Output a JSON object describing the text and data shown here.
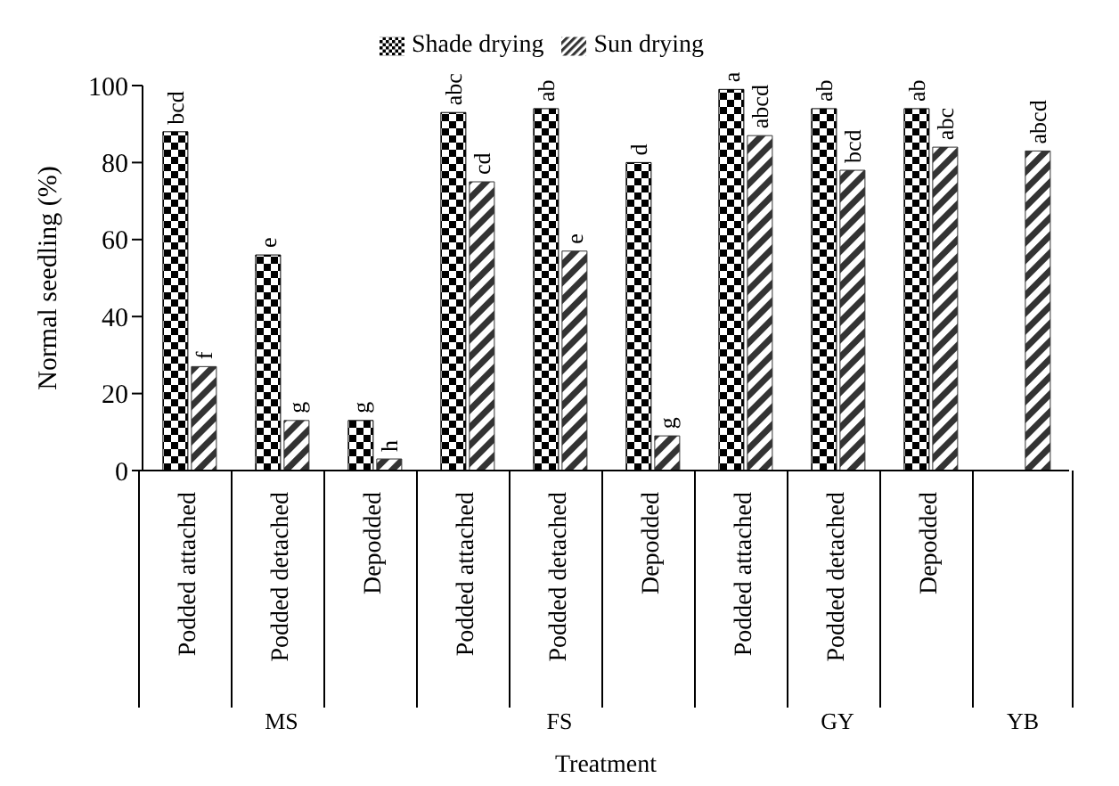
{
  "chart_data": {
    "type": "bar",
    "xlabel": "Treatment",
    "ylabel": "Normal seedling (%)",
    "categories": [
      "Podded attached",
      "Podded detached",
      "Depodded",
      "Podded attached",
      "Podded detached",
      "Depodded",
      "Podded attached",
      "Podded detached",
      "Depodded",
      null
    ],
    "series": [
      {
        "name": "Shade drying",
        "color": "#000000",
        "values": [
          88,
          56,
          13,
          93,
          94,
          80,
          99,
          94,
          94,
          null
        ],
        "value_labels": [
          "bcd",
          "e",
          "g",
          "abc",
          "ab",
          "d",
          "a",
          "ab",
          "ab",
          null
        ]
      },
      {
        "name": "Sun drying",
        "color": "#333333",
        "values": [
          27,
          13,
          3,
          75,
          57,
          9,
          87,
          78,
          84,
          83
        ],
        "value_labels": [
          "f",
          "g",
          "h",
          "cd",
          "e",
          "g",
          "abcd",
          "bcd",
          "abc",
          "abcd"
        ]
      }
    ],
    "annotations": [
      "MS",
      "FS",
      "GY",
      "YB"
    ],
    "ylim": [
      0,
      100
    ],
    "yticks": [
      0,
      20,
      40,
      60,
      80,
      100
    ],
    "grid": false,
    "legend": "top"
  }
}
